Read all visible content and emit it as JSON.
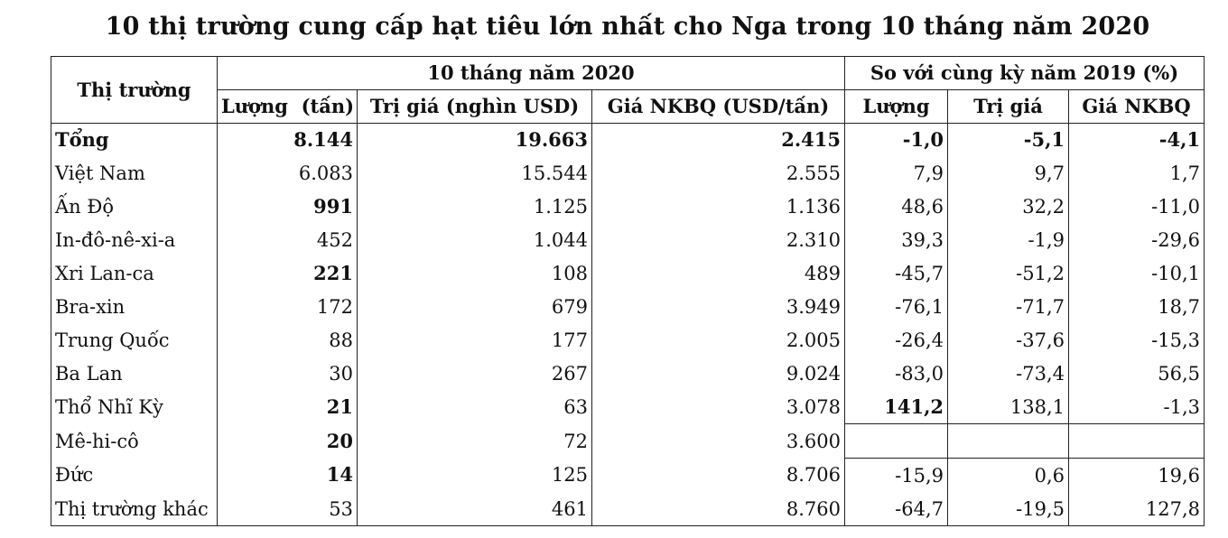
{
  "title": "10 thị trường cung cấp hạt tiêu lớn nhất cho Nga trong 10 tháng năm 2020",
  "headers": {
    "market": "Thị trường",
    "group_2020": "10 tháng năm 2020",
    "group_compare": "So với cùng kỳ năm 2019 (%)",
    "volume": "Lượng  (tấn)",
    "value": "Trị giá (nghìn USD)",
    "price": "Giá NKBQ (USD/tấn)",
    "cmp_volume": "Lượng",
    "cmp_value": "Trị giá",
    "cmp_price": "Giá NKBQ"
  },
  "total": {
    "name": "Tổng",
    "volume": "8.144",
    "value": "19.663",
    "price": "2.415",
    "cmp_volume": "-1,0",
    "cmp_value": "-5,1",
    "cmp_price": "-4,1"
  },
  "rows": [
    {
      "name": "Việt Nam",
      "volume": "6.083",
      "value": "15.544",
      "price": "2.555",
      "cmp_volume": "7,9",
      "cmp_value": "9,7",
      "cmp_price": "1,7"
    },
    {
      "name": "Ấn Độ",
      "volume": "991",
      "value": "1.125",
      "price": "1.136",
      "cmp_volume": "48,6",
      "cmp_value": "32,2",
      "cmp_price": "-11,0"
    },
    {
      "name": "In-đô-nê-xi-a",
      "volume": "452",
      "value": "1.044",
      "price": "2.310",
      "cmp_volume": "39,3",
      "cmp_value": "-1,9",
      "cmp_price": "-29,6"
    },
    {
      "name": "Xri Lan-ca",
      "volume": "221",
      "value": "108",
      "price": "489",
      "cmp_volume": "-45,7",
      "cmp_value": "-51,2",
      "cmp_price": "-10,1"
    },
    {
      "name": "Bra-xin",
      "volume": "172",
      "value": "679",
      "price": "3.949",
      "cmp_volume": "-76,1",
      "cmp_value": "-71,7",
      "cmp_price": "18,7"
    },
    {
      "name": "Trung Quốc",
      "volume": "88",
      "value": "177",
      "price": "2.005",
      "cmp_volume": "-26,4",
      "cmp_value": "-37,6",
      "cmp_price": "-15,3"
    },
    {
      "name": "Ba Lan",
      "volume": "30",
      "value": "267",
      "price": "9.024",
      "cmp_volume": "-83,0",
      "cmp_value": "-73,4",
      "cmp_price": "56,5"
    },
    {
      "name": "Thổ Nhĩ Kỳ",
      "volume": "21",
      "value": "63",
      "price": "3.078",
      "cmp_volume": "141,2",
      "cmp_value": "138,1",
      "cmp_price": "-1,3"
    },
    {
      "name": "Mê-hi-cô",
      "volume": "20",
      "value": "72",
      "price": "3.600",
      "cmp_volume": "",
      "cmp_value": "",
      "cmp_price": ""
    },
    {
      "name": "Đức",
      "volume": "14",
      "value": "125",
      "price": "8.706",
      "cmp_volume": "-15,9",
      "cmp_value": "0,6",
      "cmp_price": "19,6"
    },
    {
      "name": "Thị trường khác",
      "volume": "53",
      "value": "461",
      "price": "8.760",
      "cmp_volume": "-64,7",
      "cmp_value": "-19,5",
      "cmp_price": "127,8"
    }
  ]
}
